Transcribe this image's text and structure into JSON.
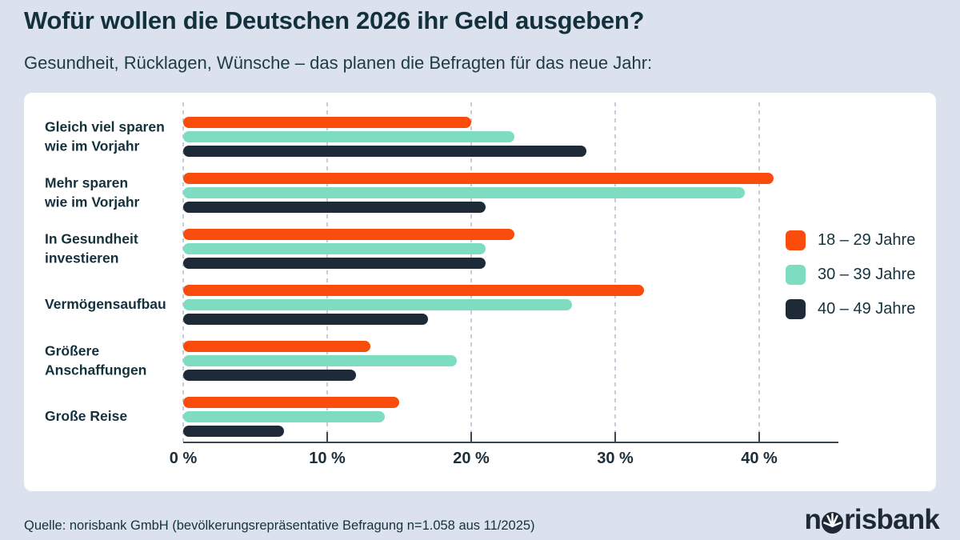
{
  "header": {
    "title": "Wofür wollen die Deutschen 2026 ihr Geld ausgeben?",
    "subtitle": "Gesundheit, Rücklagen, Wünsche – das planen die Befragten für das neue Jahr:"
  },
  "chart_data": {
    "type": "bar",
    "orientation": "horizontal",
    "title": "Wofür wollen die Deutschen 2026 ihr Geld ausgeben?",
    "unit": "%",
    "categories": [
      "Gleich viel sparen\nwie im Vorjahr",
      "Mehr sparen\nwie im Vorjahr",
      "In Gesundheit\ninvestieren",
      "Vermögensaufbau",
      "Größere\nAnschaffungen",
      "Große Reise"
    ],
    "series": [
      {
        "name": "18 – 29 Jahre",
        "color": "#fa4d0d",
        "values": [
          20,
          41,
          23,
          32,
          13,
          15
        ]
      },
      {
        "name": "30 – 39 Jahre",
        "color": "#7edcc1",
        "values": [
          23,
          39,
          21,
          27,
          19,
          14
        ]
      },
      {
        "name": "40 – 49 Jahre",
        "color": "#1f2a39",
        "values": [
          28,
          21,
          21,
          17,
          12,
          7
        ]
      }
    ],
    "x_ticks": [
      "0 %",
      "10 %",
      "20 %",
      "30 %",
      "40 %"
    ],
    "xlim": [
      0,
      45
    ],
    "grid": "dashed-vertical",
    "legend_position": "right"
  },
  "colors": {
    "page_background": "#dbe2ee",
    "card_background": "#ffffff",
    "accent_orange": "#fa4d0d",
    "accent_mint": "#7edcc1",
    "accent_navy": "#1f2a39",
    "text_dark": "#14323e"
  },
  "footer": {
    "source": "Quelle: norisbank GmbH (bevölkerungsrepräsentative Befragung n=1.058 aus 11/2025)",
    "logo_prefix": "n",
    "logo_suffix": "risbank"
  }
}
